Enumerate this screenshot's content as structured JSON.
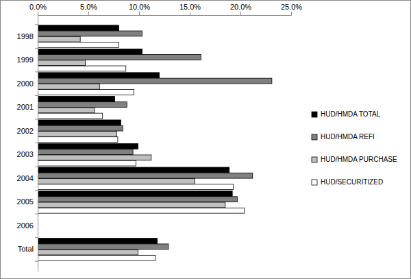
{
  "chart_data": {
    "type": "bar",
    "orientation": "horizontal",
    "categories": [
      "1998",
      "1999",
      "2000",
      "2001",
      "2002",
      "2003",
      "2004",
      "2005",
      "2006",
      "Total"
    ],
    "series": [
      {
        "name": "HUD/HMDA TOTAL",
        "color": "#000000",
        "values": [
          8.0,
          10.3,
          12.0,
          7.6,
          8.2,
          9.9,
          18.9,
          19.2,
          null,
          11.8
        ]
      },
      {
        "name": "HUD/HMDA REFI",
        "color": "#808080",
        "values": [
          10.3,
          16.1,
          23.1,
          8.8,
          8.4,
          9.4,
          21.2,
          19.7,
          null,
          12.9
        ]
      },
      {
        "name": "HUD/HMDA PURCHASE",
        "color": "#c0c0c0",
        "values": [
          4.2,
          4.7,
          6.1,
          5.6,
          7.8,
          11.2,
          15.5,
          18.5,
          null,
          9.9
        ]
      },
      {
        "name": "HUD/SECURITIZED",
        "color": "#ffffff",
        "values": [
          8.0,
          8.7,
          9.5,
          6.4,
          7.9,
          9.7,
          19.3,
          20.4,
          null,
          11.6
        ]
      }
    ],
    "xlim": [
      0,
      25
    ],
    "xticks": [
      {
        "value": 0,
        "label": "0.0%"
      },
      {
        "value": 5,
        "label": "5.0%"
      },
      {
        "value": 10,
        "label": "10.0%"
      },
      {
        "value": 15,
        "label": "15.0%"
      },
      {
        "value": 20,
        "label": "20.0%"
      },
      {
        "value": 25,
        "label": "25.0%"
      }
    ],
    "grid": false,
    "legend": "right"
  }
}
